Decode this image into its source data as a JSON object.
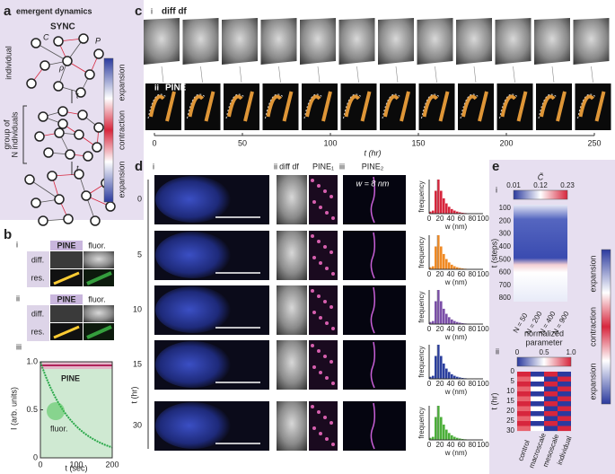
{
  "panel_a": {
    "label": "a",
    "title": "emergent dynamics",
    "subtitle": "SYNC",
    "symbols": [
      "C",
      "ρ",
      "P"
    ],
    "individual": "individual",
    "time": [
      "t",
      "t"
    ],
    "group": [
      "group of",
      "N individuals"
    ],
    "colorbar": [
      "expansion",
      "contraction",
      "expansion"
    ]
  },
  "panel_b": {
    "label": "b",
    "sub": [
      {
        "label": "i",
        "columns": [
          "PINE",
          "fluor."
        ],
        "rows": [
          "diff.",
          "res."
        ]
      },
      {
        "label": "ii",
        "columns": [
          "PINE",
          "fluor."
        ],
        "rows": [
          "diff.",
          "res."
        ]
      }
    ],
    "plot": {
      "label": "iii",
      "y_label": "I (arb. units)",
      "yticks": [
        "1.0",
        "0.5",
        0
      ],
      "x_label": "t (sec)",
      "xticks": [
        0,
        100,
        200
      ],
      "legend": [
        "PINE",
        "fluor."
      ]
    }
  },
  "panel_c": {
    "label": "c",
    "rows": [
      {
        "label": "i",
        "title": "diff df"
      },
      {
        "label": "ii",
        "title": "PINE"
      }
    ],
    "x_label": "t (hr)",
    "xticks": [
      0,
      50,
      100,
      150,
      200,
      250
    ]
  },
  "panel_d": {
    "label": "d",
    "columns": [
      {
        "label": "i"
      },
      {
        "label": "ii",
        "titles": [
          "diff df",
          "PINE₁"
        ]
      },
      {
        "label": "iii",
        "titles": [
          "PINE₂"
        ]
      }
    ],
    "annotation": "w = 8 nm",
    "y_label": "t (hr)",
    "rows": [
      0,
      5,
      10,
      15,
      30
    ],
    "hist": {
      "y_label": "frequency",
      "x_label": "w (nm)",
      "xticks": [
        0,
        20,
        40,
        60,
        80,
        100
      ]
    }
  },
  "panel_e": {
    "label": "e",
    "top": {
      "label": "i",
      "colorbar_title": "C̃",
      "colorbar_ticks": [
        "0.01",
        "0.12",
        "0.23"
      ],
      "y_label": "t (steps)",
      "yticks": [
        100,
        200,
        300,
        400,
        500,
        600,
        700,
        800
      ],
      "columns": [
        "N = 50",
        "N = 200",
        "N = 400",
        "N = 900"
      ]
    },
    "bottom": {
      "label": "ii",
      "colorbar_title": [
        "normalized",
        "parameter"
      ],
      "colorbar_ticks": [
        0,
        "0.5",
        "1.0"
      ],
      "y_label": "t (hr)",
      "yticks": [
        0,
        5,
        10,
        15,
        20,
        25,
        30
      ],
      "columns": [
        "control",
        "macroscale",
        "mesoscale",
        "individual"
      ]
    },
    "colorbar": [
      "expansion",
      "contraction",
      "expansion"
    ]
  }
}
